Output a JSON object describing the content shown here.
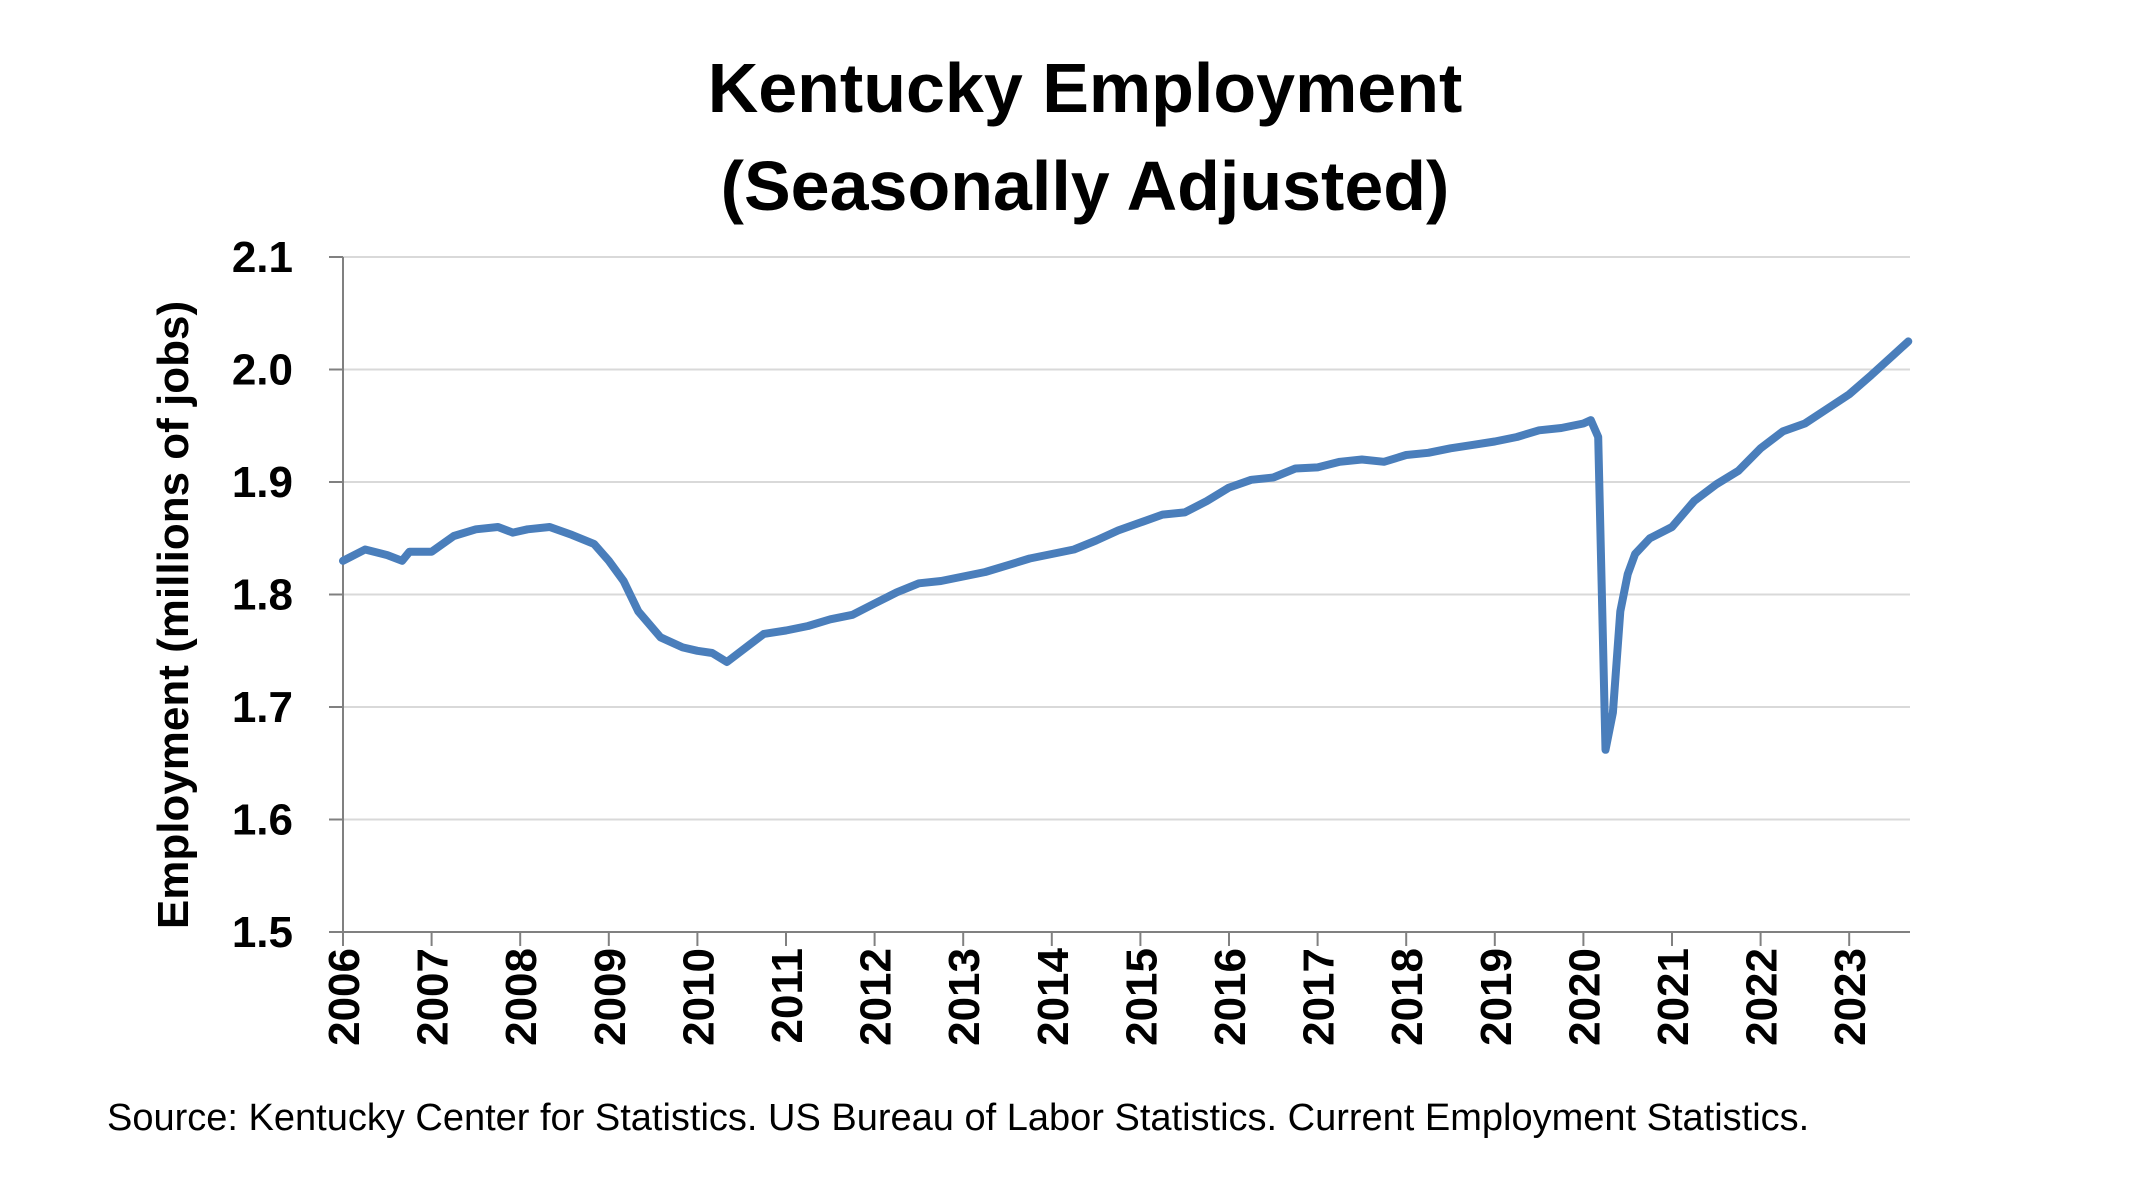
{
  "chart_data": {
    "type": "line",
    "title_lines": [
      "Kentucky Employment",
      "(Seasonally Adjusted)"
    ],
    "ylabel": "Employment (millions of jobs)",
    "xlabel": "",
    "x_tick_labels": [
      "2006",
      "2007",
      "2008",
      "2009",
      "2010",
      "2011",
      "2012",
      "2013",
      "2014",
      "2015",
      "2016",
      "2017",
      "2018",
      "2019",
      "2020",
      "2021",
      "2022",
      "2023"
    ],
    "y_tick_labels": [
      "1.5",
      "1.6",
      "1.7",
      "1.8",
      "1.9",
      "2.0",
      "2.1"
    ],
    "ylim": [
      1.5,
      2.1
    ],
    "xlim": [
      "2006-01",
      "2023-09"
    ],
    "grid": true,
    "line_color": "#4a7ebb",
    "series": [
      {
        "points": [
          [
            "2006-01",
            1.83
          ],
          [
            "2006-04",
            1.84
          ],
          [
            "2006-07",
            1.835
          ],
          [
            "2006-09",
            1.83
          ],
          [
            "2006-10",
            1.838
          ],
          [
            "2007-01",
            1.838
          ],
          [
            "2007-04",
            1.852
          ],
          [
            "2007-07",
            1.858
          ],
          [
            "2007-10",
            1.86
          ],
          [
            "2007-12",
            1.855
          ],
          [
            "2008-02",
            1.858
          ],
          [
            "2008-05",
            1.86
          ],
          [
            "2008-08",
            1.853
          ],
          [
            "2008-11",
            1.845
          ],
          [
            "2009-01",
            1.83
          ],
          [
            "2009-03",
            1.812
          ],
          [
            "2009-05",
            1.785
          ],
          [
            "2009-08",
            1.762
          ],
          [
            "2009-11",
            1.753
          ],
          [
            "2010-01",
            1.75
          ],
          [
            "2010-03",
            1.748
          ],
          [
            "2010-05",
            1.74
          ],
          [
            "2010-08",
            1.755
          ],
          [
            "2010-10",
            1.765
          ],
          [
            "2011-01",
            1.768
          ],
          [
            "2011-04",
            1.772
          ],
          [
            "2011-07",
            1.778
          ],
          [
            "2011-10",
            1.782
          ],
          [
            "2012-01",
            1.792
          ],
          [
            "2012-04",
            1.802
          ],
          [
            "2012-07",
            1.81
          ],
          [
            "2012-10",
            1.812
          ],
          [
            "2013-01",
            1.816
          ],
          [
            "2013-04",
            1.82
          ],
          [
            "2013-07",
            1.826
          ],
          [
            "2013-10",
            1.832
          ],
          [
            "2014-01",
            1.836
          ],
          [
            "2014-04",
            1.84
          ],
          [
            "2014-07",
            1.848
          ],
          [
            "2014-10",
            1.857
          ],
          [
            "2015-01",
            1.864
          ],
          [
            "2015-04",
            1.871
          ],
          [
            "2015-07",
            1.873
          ],
          [
            "2015-10",
            1.883
          ],
          [
            "2016-01",
            1.895
          ],
          [
            "2016-04",
            1.902
          ],
          [
            "2016-07",
            1.904
          ],
          [
            "2016-10",
            1.912
          ],
          [
            "2017-01",
            1.913
          ],
          [
            "2017-04",
            1.918
          ],
          [
            "2017-07",
            1.92
          ],
          [
            "2017-10",
            1.918
          ],
          [
            "2018-01",
            1.924
          ],
          [
            "2018-04",
            1.926
          ],
          [
            "2018-07",
            1.93
          ],
          [
            "2018-10",
            1.933
          ],
          [
            "2019-01",
            1.936
          ],
          [
            "2019-04",
            1.94
          ],
          [
            "2019-07",
            1.946
          ],
          [
            "2019-10",
            1.948
          ],
          [
            "2020-01",
            1.952
          ],
          [
            "2020-02",
            1.955
          ],
          [
            "2020-03",
            1.94
          ],
          [
            "2020-04",
            1.662
          ],
          [
            "2020-05",
            1.695
          ],
          [
            "2020-06",
            1.785
          ],
          [
            "2020-07",
            1.818
          ],
          [
            "2020-08",
            1.836
          ],
          [
            "2020-10",
            1.85
          ],
          [
            "2021-01",
            1.86
          ],
          [
            "2021-04",
            1.883
          ],
          [
            "2021-07",
            1.898
          ],
          [
            "2021-10",
            1.91
          ],
          [
            "2022-01",
            1.93
          ],
          [
            "2022-04",
            1.945
          ],
          [
            "2022-07",
            1.952
          ],
          [
            "2022-10",
            1.965
          ],
          [
            "2023-01",
            1.978
          ],
          [
            "2023-04",
            1.995
          ],
          [
            "2023-07",
            2.013
          ],
          [
            "2023-09",
            2.025
          ]
        ]
      }
    ]
  },
  "source_note": "Source: Kentucky Center for Statistics. US Bureau of Labor Statistics. Current Employment Statistics."
}
